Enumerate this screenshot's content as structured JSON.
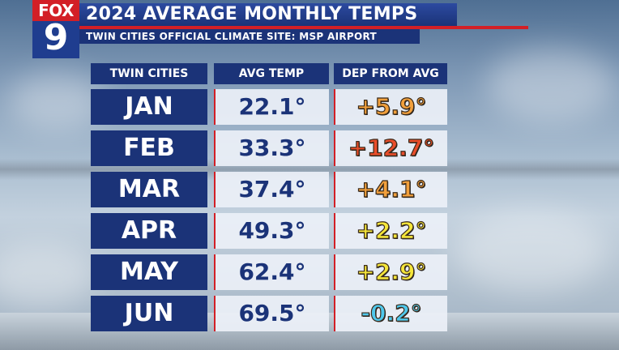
{
  "logo": {
    "brand": "FOX",
    "channel": "9"
  },
  "header": {
    "title": "2024 AVERAGE MONTHLY TEMPS",
    "subtitle": "TWIN CITIES OFFICIAL CLIMATE SITE: MSP AIRPORT"
  },
  "table": {
    "columns": [
      "TWIN CITIES",
      "AVG TEMP",
      "DEP FROM AVG"
    ],
    "rows": [
      {
        "month": "JAN",
        "avg": "22.1°",
        "dep": "+5.9°",
        "dep_color": "#f2a03c"
      },
      {
        "month": "FEB",
        "avg": "33.3°",
        "dep": "+12.7°",
        "dep_color": "#ea4d2a"
      },
      {
        "month": "MAR",
        "avg": "37.4°",
        "dep": "+4.1°",
        "dep_color": "#f2a03c"
      },
      {
        "month": "APR",
        "avg": "49.3°",
        "dep": "+2.2°",
        "dep_color": "#f5e63a"
      },
      {
        "month": "MAY",
        "avg": "62.4°",
        "dep": "+2.9°",
        "dep_color": "#f5e63a"
      },
      {
        "month": "JUN",
        "avg": "69.5°",
        "dep": "-0.2°",
        "dep_color": "#4fc8ec"
      }
    ]
  },
  "colors": {
    "navy": "#1b3378",
    "red": "#d31f26",
    "cell_bg": "#ecf0f7"
  }
}
